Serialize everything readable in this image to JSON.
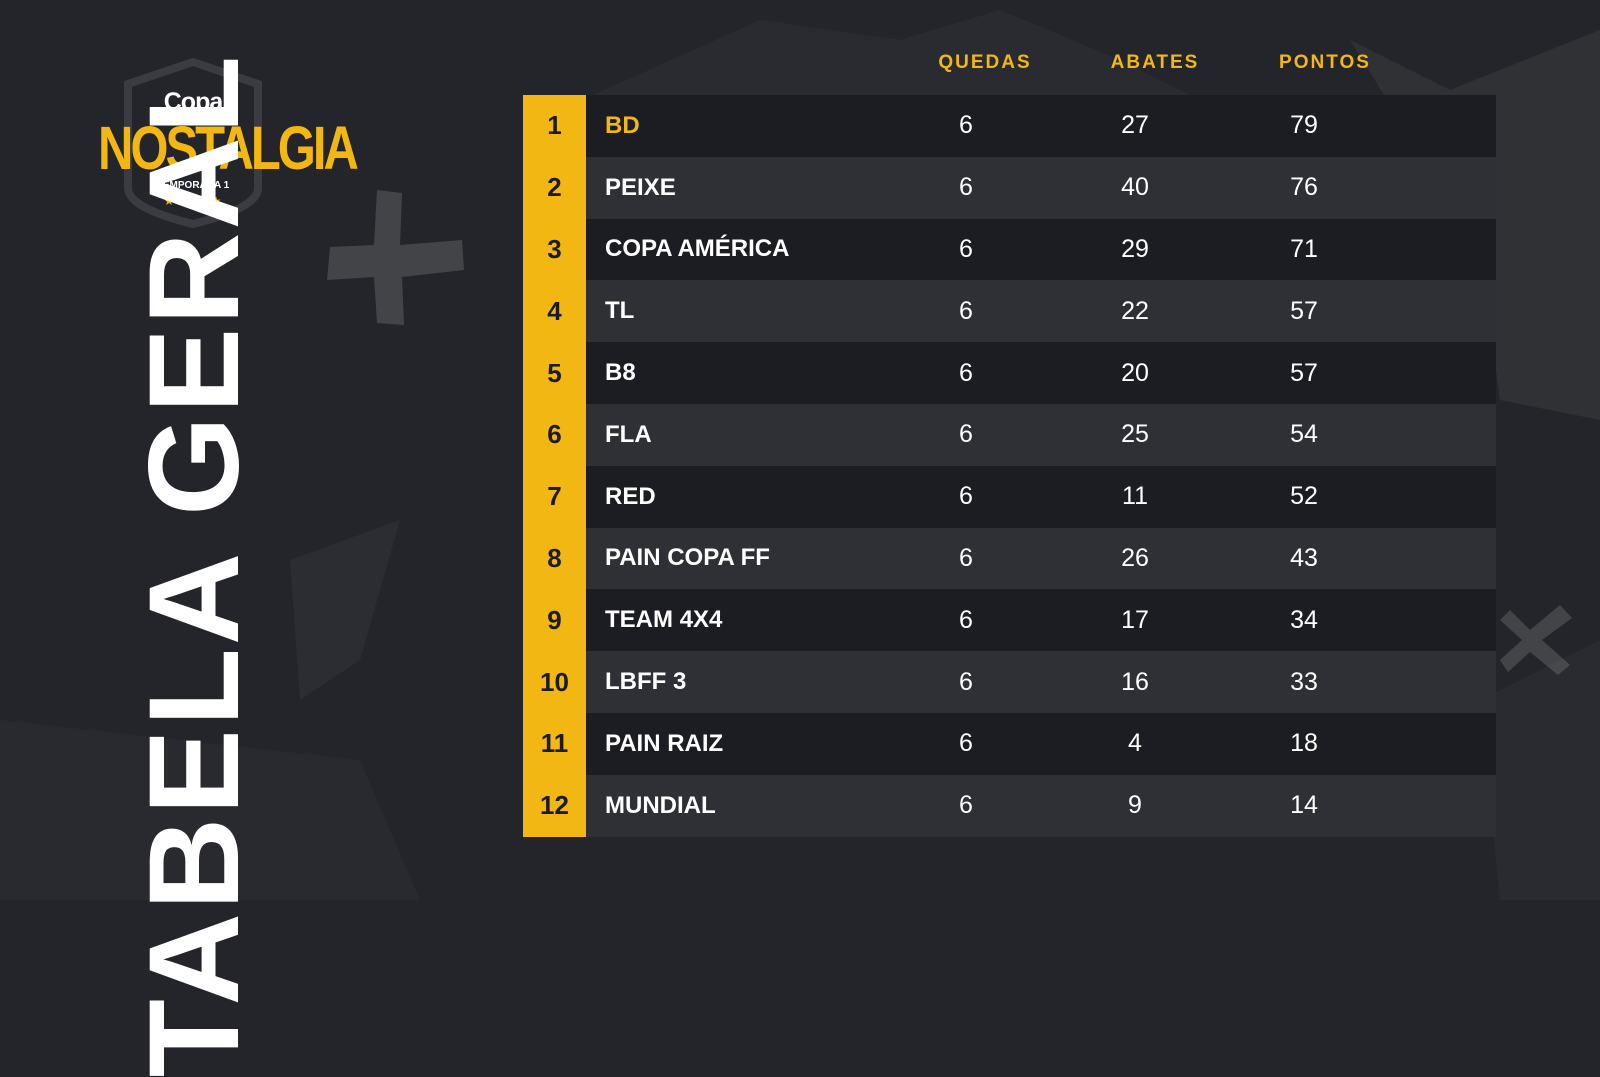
{
  "logo": {
    "line1": "Copa",
    "line2": "NOSTALGIA",
    "season": "TEMPORADA 1",
    "stars": "★★★★★"
  },
  "title": "TABELA GERAL",
  "colors": {
    "accent": "#f2b713",
    "background": "#24252a",
    "row_dark": "#1c1d22",
    "row_light": "#2e3035",
    "text": "#ffffff"
  },
  "columns": {
    "quedas": "QUEDAS",
    "abates": "ABATES",
    "pontos": "PONTOS"
  },
  "rows": [
    {
      "rank": "1",
      "team": "BD",
      "quedas": "6",
      "abates": "27",
      "pontos": "79"
    },
    {
      "rank": "2",
      "team": "PEIXE",
      "quedas": "6",
      "abates": "40",
      "pontos": "76"
    },
    {
      "rank": "3",
      "team": "COPA AMÉRICA",
      "quedas": "6",
      "abates": "29",
      "pontos": "71"
    },
    {
      "rank": "4",
      "team": "TL",
      "quedas": "6",
      "abates": "22",
      "pontos": "57"
    },
    {
      "rank": "5",
      "team": "B8",
      "quedas": "6",
      "abates": "20",
      "pontos": "57"
    },
    {
      "rank": "6",
      "team": "FLA",
      "quedas": "6",
      "abates": "25",
      "pontos": "54"
    },
    {
      "rank": "7",
      "team": "RED",
      "quedas": "6",
      "abates": "11",
      "pontos": "52"
    },
    {
      "rank": "8",
      "team": "PAIN COPA FF",
      "quedas": "6",
      "abates": "26",
      "pontos": "43"
    },
    {
      "rank": "9",
      "team": "TEAM 4X4",
      "quedas": "6",
      "abates": "17",
      "pontos": "34"
    },
    {
      "rank": "10",
      "team": "LBFF 3",
      "quedas": "6",
      "abates": "16",
      "pontos": "33"
    },
    {
      "rank": "11",
      "team": "PAIN RAIZ",
      "quedas": "6",
      "abates": "4",
      "pontos": "18"
    },
    {
      "rank": "12",
      "team": "MUNDIAL",
      "quedas": "6",
      "abates": "9",
      "pontos": "14"
    }
  ]
}
